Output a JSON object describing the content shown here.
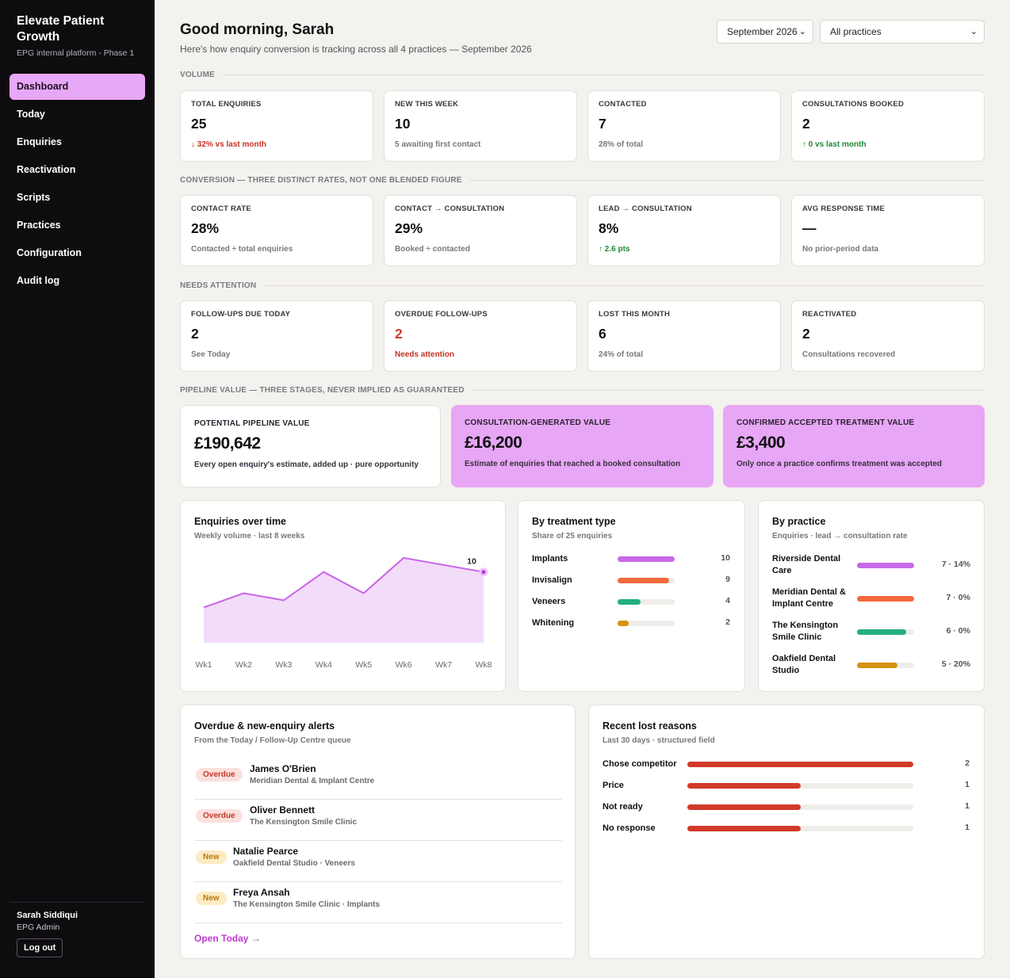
{
  "brand": {
    "title": "Elevate Patient Growth",
    "subtitle": "EPG internal platform - Phase 1"
  },
  "nav": [
    {
      "label": "Dashboard",
      "active": true
    },
    {
      "label": "Today"
    },
    {
      "label": "Enquiries"
    },
    {
      "label": "Reactivation"
    },
    {
      "label": "Scripts"
    },
    {
      "label": "Practices"
    },
    {
      "label": "Configuration"
    },
    {
      "label": "Audit log"
    }
  ],
  "user": {
    "name": "Sarah Siddiqui",
    "role": "EPG Admin",
    "logout": "Log out"
  },
  "header": {
    "greeting": "Good morning, Sarah",
    "subtitle": "Here's how enquiry conversion is tracking across all 4 practices — September 2026",
    "month_select": "September 2026",
    "practice_select": "All practices"
  },
  "sections": {
    "volume": "VOLUME",
    "conversion": "CONVERSION — THREE DISTINCT RATES, NOT ONE BLENDED FIGURE",
    "attention": "NEEDS ATTENTION",
    "pipeline": "PIPELINE VALUE — THREE STAGES, NEVER IMPLIED AS GUARANTEED"
  },
  "volume": [
    {
      "label": "TOTAL ENQUIRIES",
      "value": "25",
      "foot": "↓ 32% vs last month"
    },
    {
      "label": "NEW THIS WEEK",
      "value": "10",
      "foot": "5 awaiting first contact"
    },
    {
      "label": "CONTACTED",
      "value": "7",
      "foot": "28% of total"
    },
    {
      "label": "CONSULTATIONS BOOKED",
      "value": "2",
      "foot": "↑ 0 vs last month"
    }
  ],
  "conversion": [
    {
      "label": "CONTACT RATE",
      "value": "28%",
      "foot": "Contacted ÷ total enquiries"
    },
    {
      "label": "CONTACT → CONSULTATION",
      "value": "29%",
      "foot": "Booked ÷ contacted"
    },
    {
      "label": "LEAD → CONSULTATION",
      "value": "8%",
      "foot": "↑ 2.6 pts"
    },
    {
      "label": "AVG RESPONSE TIME",
      "value": "—",
      "foot": "No prior-period data"
    }
  ],
  "attention": [
    {
      "label": "FOLLOW-UPS DUE TODAY",
      "value": "2",
      "foot": "See Today"
    },
    {
      "label": "OVERDUE FOLLOW-UPS",
      "value": "2",
      "foot": "Needs attention"
    },
    {
      "label": "LOST THIS MONTH",
      "value": "6",
      "foot": "24% of total"
    },
    {
      "label": "REACTIVATED",
      "value": "2",
      "foot": "Consultations recovered"
    }
  ],
  "pipeline": [
    {
      "label": "POTENTIAL PIPELINE VALUE",
      "value": "£190,642",
      "foot": "Every open enquiry's estimate, added up · pure opportunity"
    },
    {
      "label": "CONSULTATION-GENERATED VALUE",
      "value": "£16,200",
      "foot": "Estimate of enquiries that reached a booked consultation"
    },
    {
      "label": "CONFIRMED ACCEPTED TREATMENT VALUE",
      "value": "£3,400",
      "foot": "Only once a practice confirms treatment was accepted"
    }
  ],
  "chart_data": [
    {
      "type": "area",
      "title": "Enquiries over time",
      "subtitle": "Weekly volume · last 8 weeks",
      "categories": [
        "Wk1",
        "Wk2",
        "Wk3",
        "Wk4",
        "Wk5",
        "Wk6",
        "Wk7",
        "Wk8"
      ],
      "values": [
        5,
        7,
        6,
        10,
        7,
        12,
        11,
        10
      ],
      "last_label": "10",
      "ylim": [
        0,
        14
      ],
      "color": "#c864e8"
    },
    {
      "type": "bar",
      "title": "By treatment type",
      "subtitle": "Share of 25 enquiries",
      "categories": [
        "Implants",
        "Invisalign",
        "Veneers",
        "Whitening"
      ],
      "values": [
        10,
        9,
        4,
        2
      ],
      "colors": [
        "#c76ae6",
        "#f26a3d",
        "#22b07d",
        "#d4920f"
      ]
    },
    {
      "type": "bar",
      "title": "By practice",
      "subtitle": "Enquiries · lead → consultation rate",
      "categories": [
        "Riverside Dental Care",
        "Meridian Dental & Implant Centre",
        "The Kensington Smile Clinic",
        "Oakfield Dental Studio"
      ],
      "values": [
        7,
        7,
        6,
        5
      ],
      "rates": [
        14,
        0,
        0,
        20
      ],
      "labels": [
        "7 · 14%",
        "7 · 0%",
        "6 · 0%",
        "5 · 20%"
      ],
      "colors": [
        "#c76ae6",
        "#f26a3d",
        "#22b07d",
        "#d4920f"
      ]
    },
    {
      "type": "bar",
      "title": "Recent lost reasons",
      "subtitle": "Last 30 days · structured field",
      "categories": [
        "Chose competitor",
        "Price",
        "Not ready",
        "No response"
      ],
      "values": [
        2,
        1,
        1,
        1
      ],
      "colors": [
        "#d23a2a",
        "#d23a2a",
        "#d23a2a",
        "#d23a2a"
      ]
    }
  ],
  "alerts": {
    "title": "Overdue & new-enquiry alerts",
    "subtitle": "From the Today / Follow-Up Centre queue",
    "items": [
      {
        "badge": "Overdue",
        "name": "James O'Brien",
        "meta": "Meridian Dental & Implant Centre"
      },
      {
        "badge": "Overdue",
        "name": "Oliver Bennett",
        "meta": "The Kensington Smile Clinic"
      },
      {
        "badge": "New",
        "name": "Natalie Pearce",
        "meta": "Oakfield Dental Studio · Veneers"
      },
      {
        "badge": "New",
        "name": "Freya Ansah",
        "meta": "The Kensington Smile Clinic · Implants"
      }
    ],
    "link": "Open Today →"
  }
}
